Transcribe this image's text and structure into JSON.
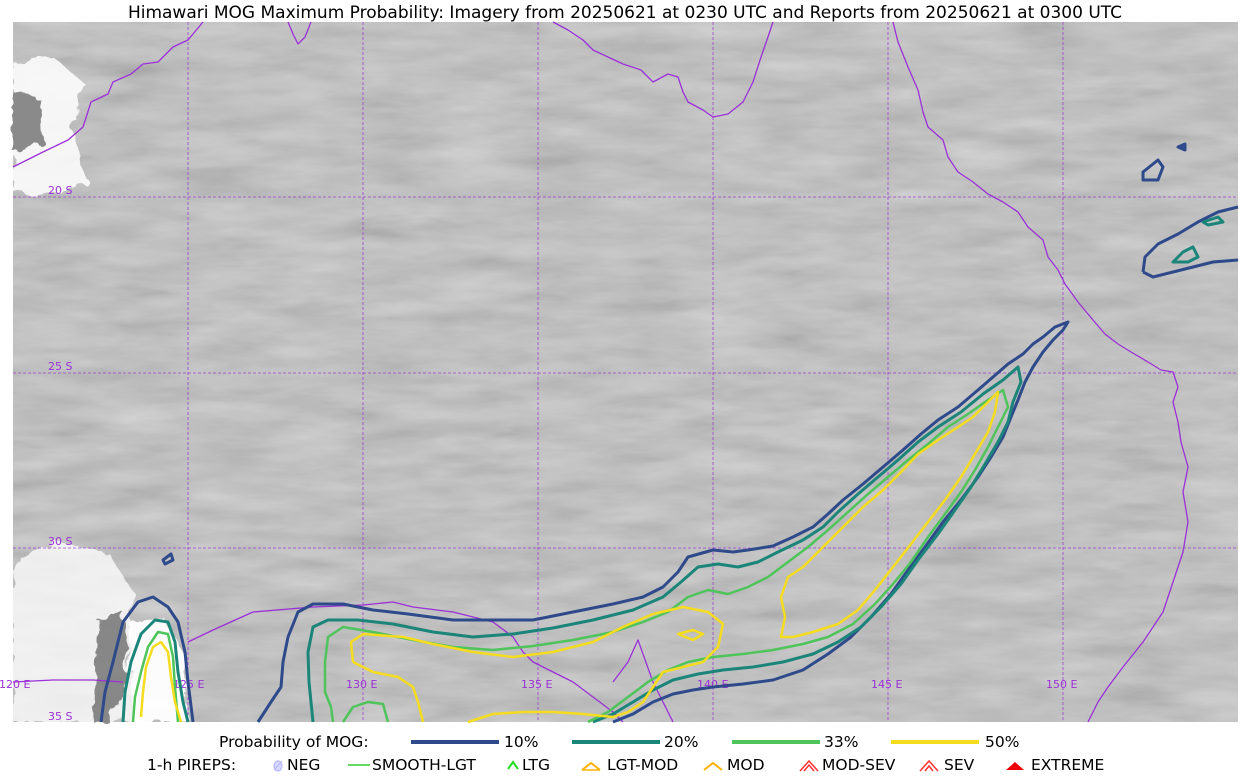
{
  "title": "Himawari MOG Maximum Probability: Imagery from 20250621 at 0230 UTC and Reports from 20250621 at 0300 UTC",
  "colors": {
    "coastline": "#9b30d8",
    "grid": "#9b30d8",
    "p10": "#2e4a8b",
    "p20": "#1b8579",
    "p33": "#4ec45a",
    "p50": "#f5dc1e",
    "pirep_neg": "#b8b8ff",
    "pirep_smooth": "#33cc33",
    "pirep_ltg": "#22dd22",
    "pirep_lgtmod": "#ffb100",
    "pirep_mod": "#ffb100",
    "pirep_modsev": "#ff3030",
    "pirep_sev": "#ff3030",
    "pirep_extreme": "#ee0000"
  },
  "map": {
    "background": "Himawari satellite imagery (grayscale)",
    "lat_labels": [
      "20 S",
      "25 S",
      "30 S",
      "35 S"
    ],
    "lon_labels": [
      "120 E",
      "125 E",
      "130 E",
      "135 E",
      "140 E",
      "145 E",
      "150 E"
    ]
  },
  "legend": {
    "prob_heading": "Probability of MOG:",
    "prob_items": [
      {
        "label": "10%",
        "color": "#2e4a8b"
      },
      {
        "label": "20%",
        "color": "#1b8579"
      },
      {
        "label": "33%",
        "color": "#4ec45a"
      },
      {
        "label": "50%",
        "color": "#f5dc1e"
      }
    ],
    "pirep_heading": "1-h PIREPS:",
    "pirep_items": [
      {
        "label": "NEG",
        "icon": "neg-icon"
      },
      {
        "label": "SMOOTH-LGT",
        "icon": "smooth-lgt-icon"
      },
      {
        "label": "LTG",
        "icon": "ltg-icon"
      },
      {
        "label": "LGT-MOD",
        "icon": "lgt-mod-icon"
      },
      {
        "label": "MOD",
        "icon": "mod-icon"
      },
      {
        "label": "MOD-SEV",
        "icon": "mod-sev-icon"
      },
      {
        "label": "SEV",
        "icon": "sev-icon"
      },
      {
        "label": "EXTREME",
        "icon": "extreme-icon"
      }
    ]
  }
}
